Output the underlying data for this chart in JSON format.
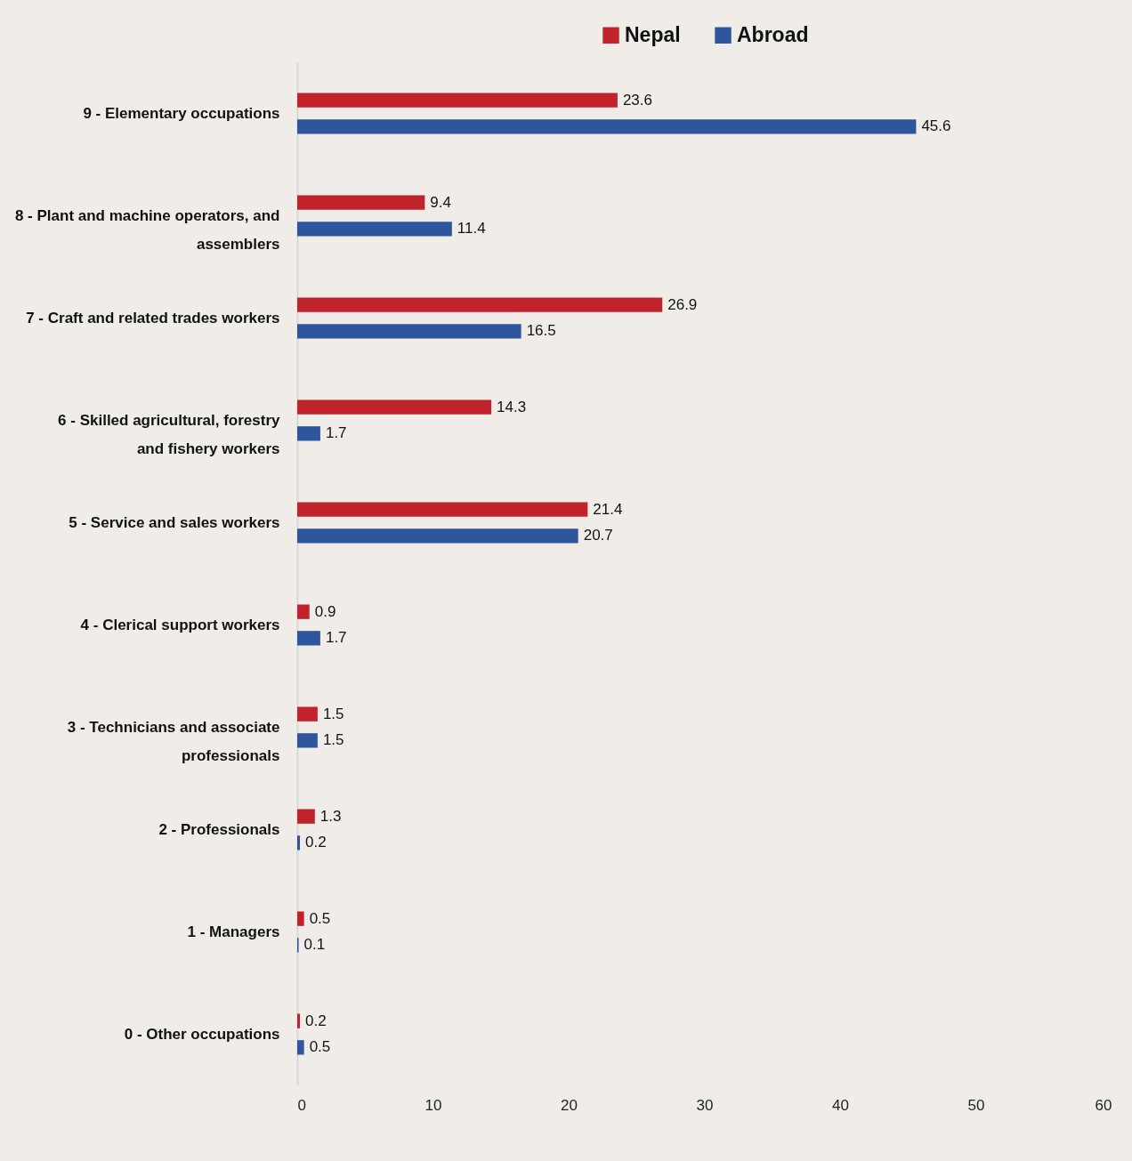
{
  "chart_data": {
    "type": "bar",
    "orientation": "horizontal",
    "categories": [
      "9 - Elementary occupations",
      "8 - Plant and machine operators, and assemblers",
      "7 - Craft and related trades workers",
      "6 - Skilled agricultural, forestry and fishery workers",
      "5 - Service and sales workers",
      "4 - Clerical support workers",
      "3 - Technicians and associate professionals",
      "2 - Professionals",
      "1 - Managers",
      "0 - Other occupations"
    ],
    "series": [
      {
        "name": "Nepal",
        "color": "#c1232b",
        "values": [
          23.6,
          9.4,
          26.9,
          14.3,
          21.4,
          0.9,
          1.5,
          1.3,
          0.5,
          0.2
        ]
      },
      {
        "name": "Abroad",
        "color": "#2f569c",
        "values": [
          45.6,
          11.4,
          16.5,
          1.7,
          20.7,
          1.7,
          1.5,
          0.2,
          0.1,
          0.5
        ]
      }
    ],
    "xlim": [
      0,
      60
    ],
    "xticks": [
      0,
      10,
      20,
      30,
      40,
      50,
      60
    ],
    "data_labels": true,
    "legend": "top",
    "grid": false
  }
}
